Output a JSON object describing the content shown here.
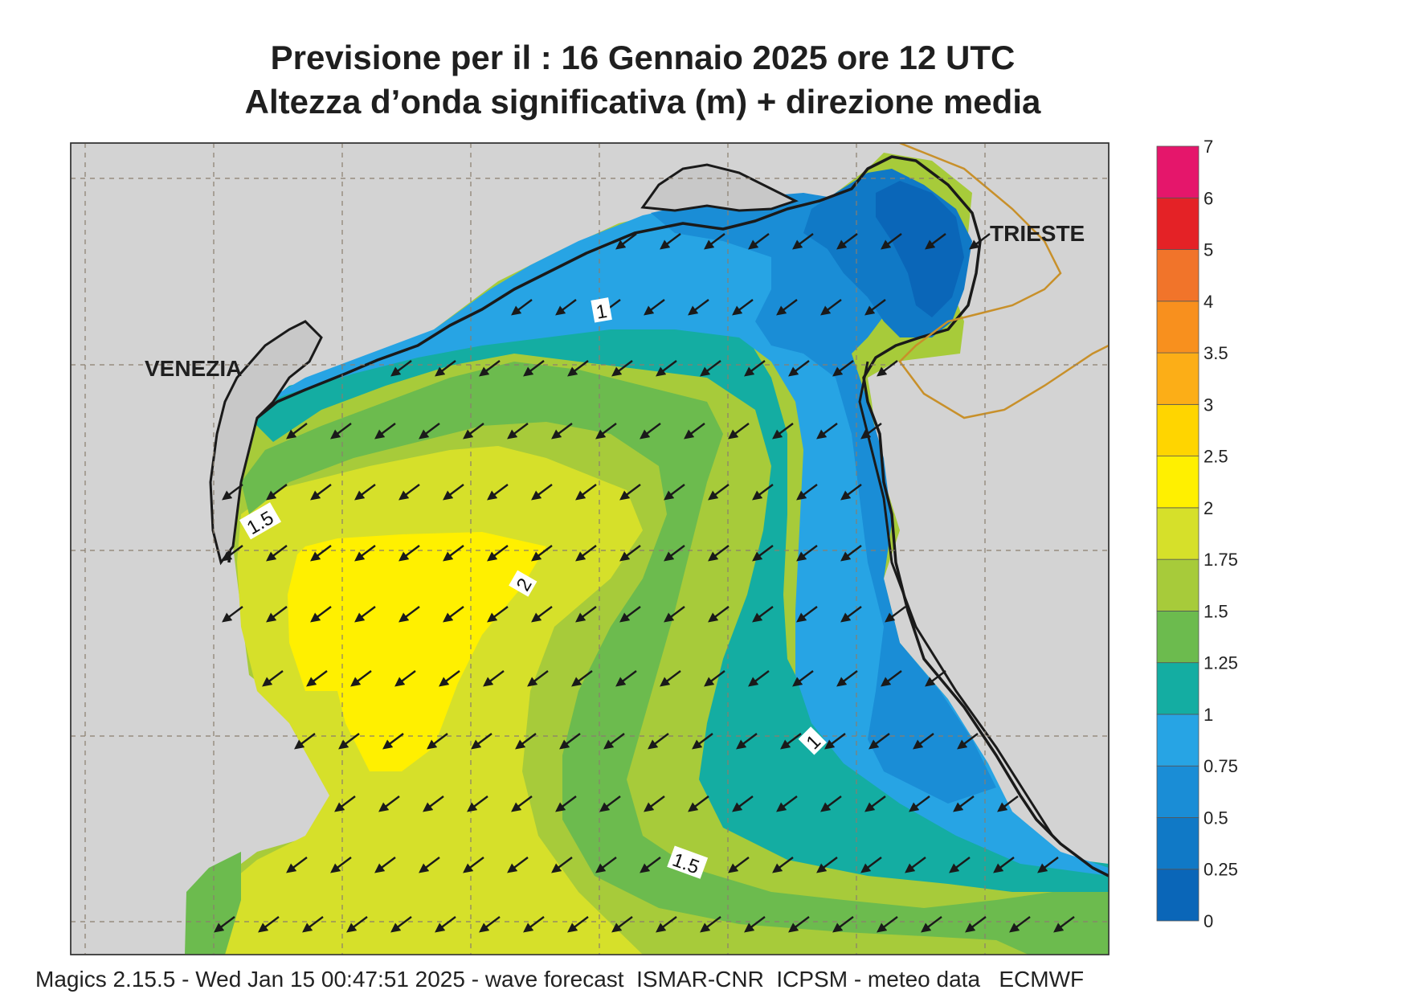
{
  "title": {
    "line1": "Previsione per il  :  16  Gennaio  2025   ore 12 UTC",
    "line2": "Altezza d’onda significativa (m) + direzione media"
  },
  "places": {
    "venezia": "VENEZIA",
    "trieste": "TRIESTE"
  },
  "contour_labels": {
    "c1a": "1",
    "c15a": "1.5",
    "c2": "2",
    "c1b": "1",
    "c15b": "1.5"
  },
  "colorbar": {
    "ticks": [
      "0",
      "0.25",
      "0.5",
      "0.75",
      "1",
      "1.25",
      "1.5",
      "1.75",
      "2",
      "2.5",
      "3",
      "3.5",
      "4",
      "5",
      "6",
      "7"
    ],
    "colors": [
      "#0a66b8",
      "#1079c6",
      "#1a8dd6",
      "#27a4e4",
      "#14ada2",
      "#6cbb4e",
      "#a7cb3a",
      "#d6e02a",
      "#fff000",
      "#ffd500",
      "#fcae17",
      "#f8901e",
      "#f1742a",
      "#e42226",
      "#e5166b"
    ]
  },
  "arrow_direction": "toward southwest",
  "footer": "Magics 2.15.5 - Wed Jan 15 00:47:51 2025 - wave forecast  ISMAR-CNR  ICPSM - meteo data   ECMWF"
}
